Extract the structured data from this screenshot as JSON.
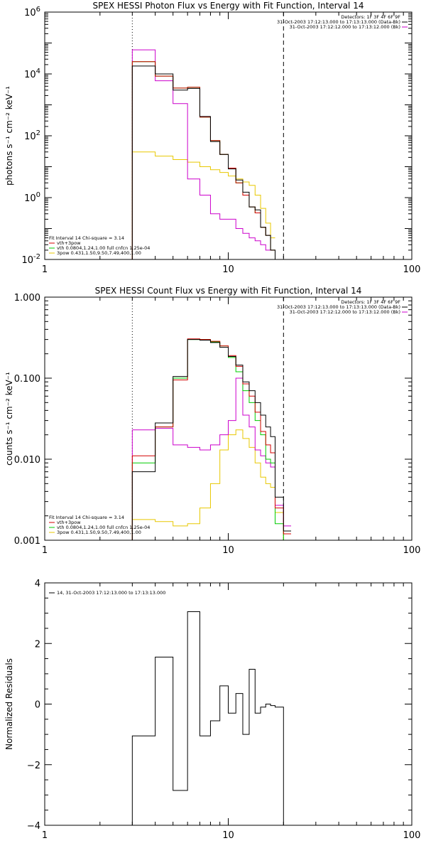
{
  "colors": {
    "black": "#000000",
    "red": "#d40000",
    "green": "#00cc00",
    "magenta": "#cc00cc",
    "yellow": "#e8c800"
  },
  "chart_data": [
    {
      "type": "line",
      "title": "SPEX HESSI Photon Flux vs Energy with Fit Function, Interval 14",
      "ylabel": "photons s⁻¹ cm⁻² keV⁻¹",
      "xlabel": "",
      "xscale": "log",
      "yscale": "log",
      "xlim": [
        1,
        100
      ],
      "ylim": [
        0.01,
        1000000
      ],
      "xticks": [
        "1",
        "10",
        "100"
      ],
      "yticks": [
        {
          "v": 0.01,
          "b": "10",
          "e": "-2"
        },
        {
          "v": 1,
          "b": "10",
          "e": "0"
        },
        {
          "v": 100,
          "b": "10",
          "e": "2"
        },
        {
          "v": 10000,
          "b": "10",
          "e": "4"
        },
        {
          "v": 1000000,
          "b": "10",
          "e": "6"
        }
      ],
      "detector_label": "Detectors: 1F 3F 4F 6F 9F",
      "legend_right": [
        "31-Oct-2003 17:12:13.000 to 17:13:13.000 (Data-Bk)",
        "31-Oct-2003 17:12:12.000 to 17:13:12.000 (Bk)"
      ],
      "legend_left": [
        "Fit Interval 14    Chi-square = 3.14",
        "vth+3pow",
        "vth 0.0804,1.24,1.00  full cnfcn 1.25e-04",
        "3pow 0.431,1.50,9.50,7.49,400,1.00"
      ],
      "vline_dotted": 3,
      "vline_dashed": 20,
      "bin_edges": [
        3,
        4,
        5,
        6,
        7,
        8,
        9,
        10,
        11,
        12,
        13,
        14,
        15,
        16,
        17,
        18,
        20,
        22
      ],
      "series": [
        {
          "name": "Data-Bk",
          "color": "black",
          "values": [
            18000,
            10000,
            3000,
            3400,
            420,
            65,
            25,
            8.5,
            3.7,
            1.5,
            0.5,
            0.4,
            0.11,
            0.06,
            0.02,
            0.006,
            0.008
          ]
        },
        {
          "name": "vth+3pow",
          "color": "red",
          "values": [
            25000,
            8500,
            3500,
            3700,
            400,
            70,
            25,
            9,
            3,
            1.2,
            0.5,
            0.32,
            0.11,
            0.06,
            0.02,
            0.006,
            0.009
          ]
        },
        {
          "name": "vth",
          "color": "green",
          "values": [
            25000,
            8500,
            3500,
            3700,
            400,
            70,
            25,
            9,
            3,
            1.2,
            0.5,
            0.32,
            0.11,
            0.06,
            0.02,
            0.006,
            0.009
          ]
        },
        {
          "name": "3pow",
          "color": "yellow",
          "values": [
            30,
            22,
            17,
            14,
            10,
            8,
            6.5,
            5,
            4,
            3.2,
            2.5,
            1.2,
            0.45,
            0.15,
            0.05,
            null,
            null
          ]
        },
        {
          "name": "Bk",
          "color": "magenta",
          "values": [
            60000,
            6000,
            1100,
            4,
            1.2,
            0.3,
            0.2,
            0.2,
            0.1,
            0.07,
            0.05,
            0.04,
            0.03,
            0.02,
            null,
            null,
            null
          ]
        }
      ]
    },
    {
      "type": "line",
      "title": "SPEX HESSI Count Flux vs Energy with Fit Function, Interval 14",
      "ylabel": "counts s⁻¹ cm⁻² keV⁻¹",
      "xlabel": "",
      "xscale": "log",
      "yscale": "log",
      "xlim": [
        1,
        100
      ],
      "ylim": [
        0.001,
        1
      ],
      "xticks": [
        "1",
        "10",
        "100"
      ],
      "yticks": [
        {
          "v": 0.001,
          "t": "0.001"
        },
        {
          "v": 0.01,
          "t": "0.010"
        },
        {
          "v": 0.1,
          "t": "0.100"
        },
        {
          "v": 1,
          "t": "1.000"
        }
      ],
      "detector_label": "Detectors: 1F 3F 4F 6F 9F",
      "legend_right": [
        "31-Oct-2003 17:12:13.000 to 17:13:13.000 (Data-Bk)",
        "31-Oct-2003 17:12:12.000 to 17:13:12.000 (Bk)"
      ],
      "legend_left": [
        "Fit Interval 14    Chi-square = 3.14",
        "vth+3pow",
        "vth 0.0804,1.24,1.00  full cnfcn 1.25e-04",
        "3pow 0.431,1.50,9.50,7.49,400,1.00"
      ],
      "vline_dotted": 3,
      "vline_dashed": 20,
      "bin_edges": [
        3,
        4,
        5,
        6,
        7,
        8,
        9,
        10,
        11,
        12,
        13,
        14,
        15,
        16,
        17,
        18,
        20,
        22
      ],
      "series": [
        {
          "name": "Data-Bk",
          "color": "black",
          "values": [
            0.007,
            0.028,
            0.105,
            0.3,
            0.295,
            0.275,
            0.24,
            0.185,
            0.145,
            0.09,
            0.07,
            0.05,
            0.035,
            0.025,
            0.019,
            0.0034,
            0.0013
          ]
        },
        {
          "name": "vth+3pow",
          "color": "red",
          "values": [
            0.011,
            0.025,
            0.095,
            0.305,
            0.3,
            0.285,
            0.25,
            0.19,
            0.14,
            0.085,
            0.06,
            0.038,
            0.022,
            0.015,
            0.012,
            0.0025,
            0.0012
          ]
        },
        {
          "name": "vth",
          "color": "green",
          "values": [
            0.009,
            0.025,
            0.1,
            0.3,
            0.3,
            0.28,
            0.25,
            0.18,
            0.12,
            0.07,
            0.05,
            0.03,
            0.02,
            0.01,
            0.009,
            0.0016,
            0.0009
          ]
        },
        {
          "name": "3pow",
          "color": "yellow",
          "values": [
            0.0018,
            0.0017,
            0.0015,
            0.0016,
            0.0025,
            0.005,
            0.013,
            0.02,
            0.023,
            0.018,
            0.014,
            0.009,
            0.006,
            0.005,
            0.0045,
            0.0022,
            0.001
          ]
        },
        {
          "name": "Bk",
          "color": "magenta",
          "values": [
            0.023,
            0.024,
            0.015,
            0.014,
            0.013,
            0.015,
            0.02,
            0.03,
            0.1,
            0.035,
            0.025,
            0.013,
            0.011,
            0.009,
            0.008,
            0.0027,
            0.0015
          ]
        }
      ]
    },
    {
      "type": "line",
      "title": "",
      "ylabel": "Normalized Residuals",
      "xlabel": "",
      "xscale": "log",
      "yscale": "linear",
      "xlim": [
        1,
        100
      ],
      "ylim": [
        -4,
        4
      ],
      "xticks": [
        "1",
        "10",
        "100"
      ],
      "yticks": [
        {
          "v": -4,
          "t": "−4"
        },
        {
          "v": -2,
          "t": "−2"
        },
        {
          "v": 0,
          "t": "0"
        },
        {
          "v": 2,
          "t": "2"
        },
        {
          "v": 4,
          "t": "4"
        }
      ],
      "legend_left": [
        "14, 31-Oct-2003 17:12:13.000 to 17:13:13.000"
      ],
      "bin_edges": [
        3,
        4,
        5,
        6,
        7,
        8,
        9,
        10,
        11,
        12,
        13,
        14,
        15,
        16,
        17,
        18,
        20
      ],
      "series": [
        {
          "name": "",
          "color": "black",
          "values": [
            -1.05,
            1.55,
            -2.85,
            3.05,
            -1.05,
            -0.55,
            0.6,
            -0.3,
            0.35,
            -1.0,
            1.15,
            -0.3,
            -0.1,
            0.0,
            -0.05,
            -0.1
          ]
        }
      ]
    }
  ]
}
